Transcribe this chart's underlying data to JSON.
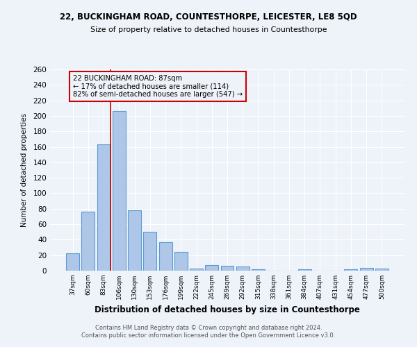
{
  "title1": "22, BUCKINGHAM ROAD, COUNTESTHORPE, LEICESTER, LE8 5QD",
  "title2": "Size of property relative to detached houses in Countesthorpe",
  "xlabel": "Distribution of detached houses by size in Countesthorpe",
  "ylabel": "Number of detached properties",
  "footer1": "Contains HM Land Registry data © Crown copyright and database right 2024.",
  "footer2": "Contains public sector information licensed under the Open Government Licence v3.0.",
  "annotation_line1": "22 BUCKINGHAM ROAD: 87sqm",
  "annotation_line2": "← 17% of detached houses are smaller (114)",
  "annotation_line3": "82% of semi-detached houses are larger (547) →",
  "bar_labels": [
    "37sqm",
    "60sqm",
    "83sqm",
    "106sqm",
    "130sqm",
    "153sqm",
    "176sqm",
    "199sqm",
    "222sqm",
    "245sqm",
    "269sqm",
    "292sqm",
    "315sqm",
    "338sqm",
    "361sqm",
    "384sqm",
    "407sqm",
    "431sqm",
    "454sqm",
    "477sqm",
    "500sqm"
  ],
  "bar_values": [
    22,
    76,
    163,
    206,
    78,
    50,
    37,
    24,
    3,
    7,
    6,
    5,
    2,
    0,
    0,
    2,
    0,
    0,
    2,
    4,
    3
  ],
  "bar_color": "#aec6e8",
  "bar_edge_color": "#5b9bd5",
  "vline_color": "#cc0000",
  "ylim": [
    0,
    260
  ],
  "yticks": [
    0,
    20,
    40,
    60,
    80,
    100,
    120,
    140,
    160,
    180,
    200,
    220,
    240,
    260
  ],
  "annotation_box_color": "#cc0000",
  "background_color": "#eef2f9",
  "grid_color": "#ffffff"
}
